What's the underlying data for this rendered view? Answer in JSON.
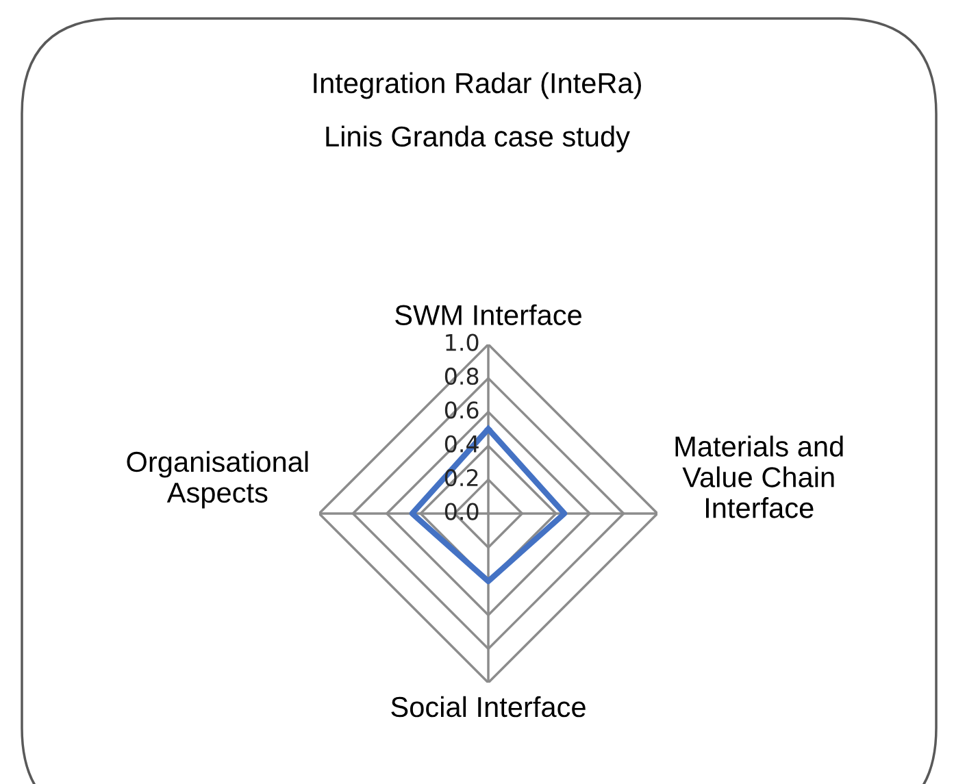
{
  "chart_data": {
    "type": "radar",
    "title": "Integration Radar (InteRa)",
    "subtitle": "Linis Granda case study",
    "categories": [
      "SWM Interface",
      "Materials and\nValue Chain\nInterface",
      "Social Interface",
      "Organisational\nAspects"
    ],
    "series": [
      {
        "color": "#4472c4",
        "values": [
          0.5,
          0.45,
          0.4,
          0.45
        ]
      }
    ],
    "ylim": [
      0,
      1.0
    ],
    "yticks": [
      {
        "value": 0,
        "label": "0.0"
      },
      {
        "value": 0.2,
        "label": "0.2"
      },
      {
        "value": 0.4,
        "label": "0.4"
      },
      {
        "value": 0.6,
        "label": "0.6"
      },
      {
        "value": 0.8,
        "label": "0.8"
      },
      {
        "value": 1.0,
        "label": "1.0"
      }
    ],
    "grid": true,
    "marker": "none",
    "line_style": "solid"
  }
}
